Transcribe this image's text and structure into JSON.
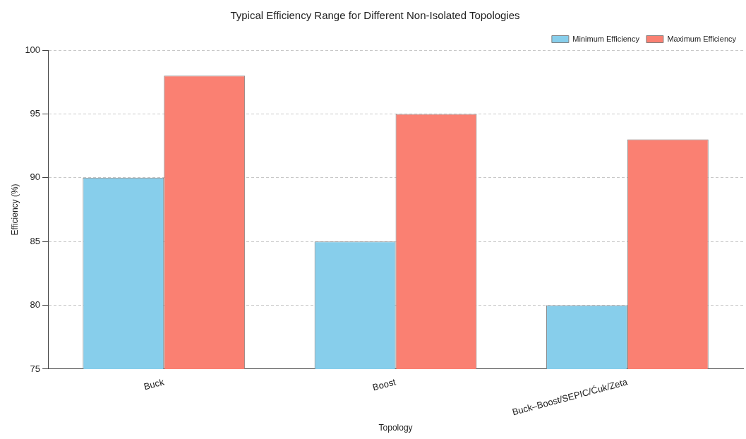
{
  "chart_data": {
    "type": "bar",
    "title": "Typical Efficiency Range for Different Non-Isolated Topologies",
    "xlabel": "Topology",
    "ylabel": "Efficiency (%)",
    "categories": [
      "Buck",
      "Boost",
      "Buck–Boost/SEPIC/Ćuk/Zeta"
    ],
    "series": [
      {
        "name": "Minimum Efficiency",
        "color": "#87ceeb",
        "values": [
          90,
          85,
          80
        ]
      },
      {
        "name": "Maximum Efficiency",
        "color": "#fa8072",
        "values": [
          98,
          95,
          93
        ]
      }
    ],
    "ylim": [
      75,
      100
    ],
    "yticks": [
      75,
      80,
      85,
      90,
      95,
      100
    ],
    "grid": "y",
    "legend": "top right"
  }
}
